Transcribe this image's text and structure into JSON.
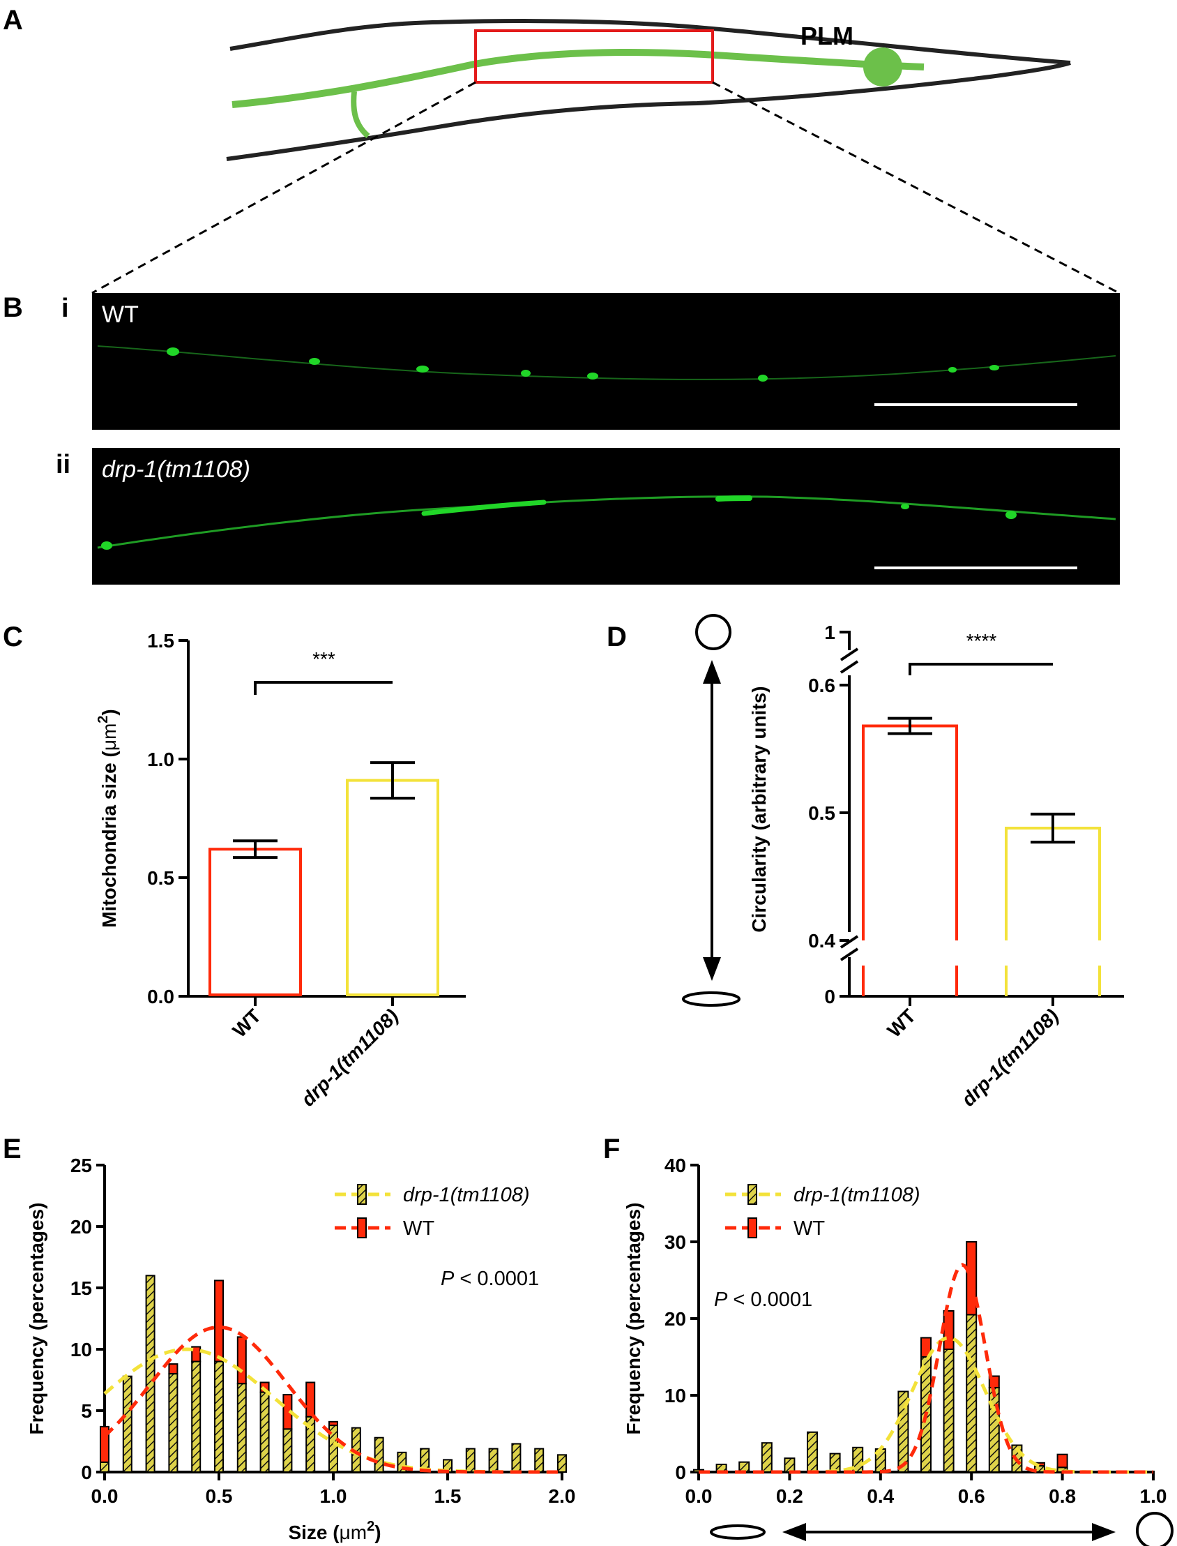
{
  "panels": {
    "A": "A",
    "B": "B",
    "C": "C",
    "D": "D",
    "E": "E",
    "F": "F"
  },
  "colors": {
    "wt": "#ff2a0a",
    "drp1": "#f3e23a",
    "drp1_fill": "#ded34a",
    "neuron": "#6cc04a",
    "box": "#e31b1b",
    "micro_bg": "#000000",
    "mito": "#21d628",
    "scale": "#ffffff",
    "axis": "#000000"
  },
  "panelA": {
    "neuron_label": "PLM"
  },
  "panelB": {
    "row_i": {
      "index": "i",
      "label": "WT"
    },
    "row_ii": {
      "index": "ii",
      "label": "drp-1(tm1108)"
    }
  },
  "panelD": {
    "shape_icons": [
      "circle-icon",
      "ellipse-icon",
      "double-arrow-icon"
    ]
  },
  "panelF": {
    "shape_icons": [
      "ellipse-icon",
      "circle-icon",
      "double-arrow-icon"
    ]
  },
  "chart_data": [
    {
      "id": "C",
      "type": "bar",
      "title": "",
      "xlabel": "",
      "ylabel": "Mitochondria size (μm²)",
      "ylabel_main": "Mitochondria size (",
      "ylabel_unit": "μm",
      "ylabel_sup": "2",
      "ylabel_close": ")",
      "ylim": [
        0,
        1.5
      ],
      "yticks": [
        0.0,
        0.5,
        1.0,
        1.5
      ],
      "ytick_labels": [
        "0.0",
        "0.5",
        "1.0",
        "1.5"
      ],
      "categories": [
        "WT",
        "drp-1(tm1108)"
      ],
      "values": [
        0.62,
        0.91
      ],
      "errors": [
        0.035,
        0.075
      ],
      "significance": "***"
    },
    {
      "id": "D",
      "type": "bar",
      "title": "",
      "xlabel": "",
      "ylabel": "Circularity (arbitrary units)",
      "broken_axis": true,
      "ylim": [
        0.4,
        0.6
      ],
      "yticks": [
        0.4,
        0.5,
        0.6
      ],
      "ytick_labels": [
        "0.4",
        "0.5",
        "0.6"
      ],
      "extra_ticks": {
        "top": "1",
        "bottom": "0"
      },
      "categories": [
        "WT",
        "drp-1(tm1108)"
      ],
      "values": [
        0.568,
        0.488
      ],
      "errors": [
        0.006,
        0.011
      ],
      "significance": "****"
    },
    {
      "id": "E",
      "type": "bar",
      "title": "",
      "xlabel": "Size (μm²)",
      "xlabel_main": "Size (",
      "xlabel_unit": "μm",
      "xlabel_sup": "2",
      "xlabel_close": ")",
      "ylabel": "Frequency (percentages)",
      "xlim": [
        0,
        2.0
      ],
      "ylim": [
        0,
        25
      ],
      "xticks": [
        0.0,
        0.5,
        1.0,
        1.5,
        2.0
      ],
      "xtick_labels": [
        "0.0",
        "0.5",
        "1.0",
        "1.5",
        "2.0"
      ],
      "yticks": [
        0,
        5,
        10,
        15,
        20,
        25
      ],
      "ytick_labels": [
        "0",
        "5",
        "10",
        "15",
        "20",
        "25"
      ],
      "bin_width": 0.1,
      "x": [
        0.0,
        0.1,
        0.2,
        0.3,
        0.4,
        0.5,
        0.6,
        0.7,
        0.8,
        0.9,
        1.0,
        1.1,
        1.2,
        1.3,
        1.4,
        1.5,
        1.6,
        1.7,
        1.8,
        1.9,
        2.0
      ],
      "series": [
        {
          "name": "drp-1(tm1108)",
          "values": [
            0.8,
            7.8,
            16.0,
            8.0,
            9.0,
            9.0,
            7.2,
            6.5,
            3.5,
            4.5,
            3.8,
            3.6,
            2.8,
            1.6,
            1.9,
            1.0,
            1.9,
            1.9,
            2.3,
            1.9,
            1.4
          ],
          "fit": {
            "amplitude": 10.0,
            "mean": 0.36,
            "sd": 0.38
          }
        },
        {
          "name": "WT",
          "values": [
            3.7,
            0,
            0,
            8.8,
            10.2,
            15.6,
            11.0,
            7.3,
            6.3,
            7.3,
            4.1,
            3.5,
            2.5,
            0,
            0,
            0,
            0,
            0,
            0,
            0,
            0
          ],
          "fit": {
            "amplitude": 11.8,
            "mean": 0.5,
            "sd": 0.3
          }
        }
      ],
      "annotation": {
        "p_symbol": "P",
        "p_value": "< 0.0001"
      },
      "legend": "top-right"
    },
    {
      "id": "F",
      "type": "bar",
      "title": "",
      "xlabel": "",
      "ylabel": "Frequency (percentages)",
      "xlim": [
        0,
        1.0
      ],
      "ylim": [
        0,
        40
      ],
      "xticks": [
        0.0,
        0.2,
        0.4,
        0.6,
        0.8,
        1.0
      ],
      "xtick_labels": [
        "0.0",
        "0.2",
        "0.4",
        "0.6",
        "0.8",
        "1.0"
      ],
      "yticks": [
        0,
        10,
        20,
        30,
        40
      ],
      "ytick_labels": [
        "0",
        "10",
        "20",
        "30",
        "40"
      ],
      "bin_width": 0.05,
      "x": [
        0.0,
        0.05,
        0.1,
        0.15,
        0.2,
        0.25,
        0.3,
        0.35,
        0.4,
        0.45,
        0.5,
        0.55,
        0.6,
        0.65,
        0.7,
        0.75,
        0.8
      ],
      "series": [
        {
          "name": "drp-1(tm1108)",
          "values": [
            0.3,
            1.0,
            1.3,
            3.8,
            1.8,
            5.2,
            2.4,
            3.2,
            3.0,
            10.5,
            15.0,
            16.0,
            20.5,
            11.0,
            3.5,
            0.8,
            0.6
          ],
          "fit": {
            "amplitude": 17.5,
            "mean": 0.55,
            "sd": 0.08
          }
        },
        {
          "name": "WT",
          "values": [
            0,
            0,
            0,
            0,
            0,
            0,
            0,
            0,
            0,
            0,
            17.5,
            21.0,
            30.0,
            12.5,
            3.5,
            1.2,
            2.3
          ],
          "fit": {
            "amplitude": 27.0,
            "mean": 0.58,
            "sd": 0.05
          }
        }
      ],
      "annotation": {
        "p_symbol": "P",
        "p_value": "< 0.0001"
      },
      "legend": "top-left"
    }
  ]
}
